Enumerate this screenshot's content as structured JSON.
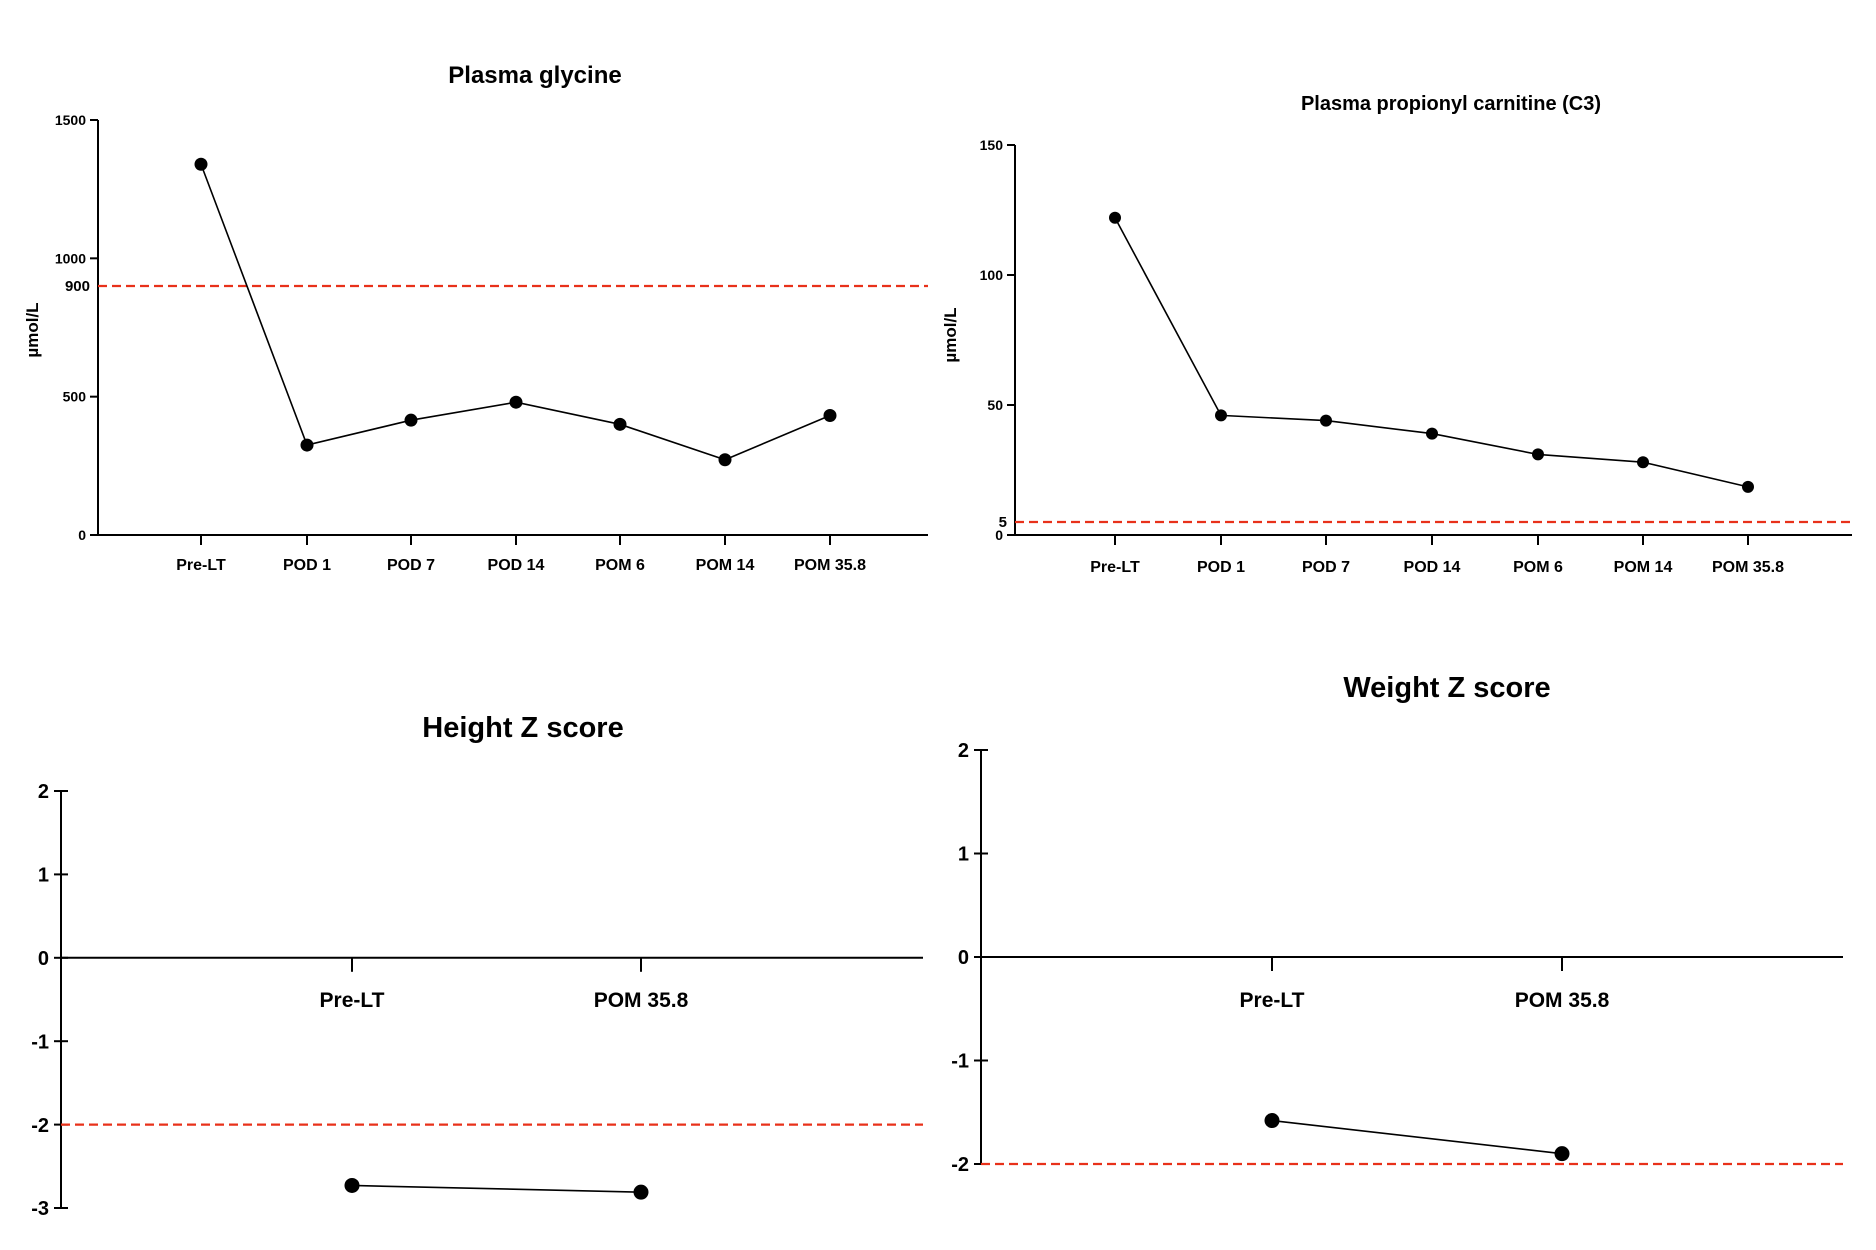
{
  "chart_data": [
    {
      "type": "line",
      "title": "Plasma glycine",
      "ylabel": "µmol/L",
      "xlabel": "",
      "categories": [
        "Pre-LT",
        "POD 1",
        "POD 7",
        "POD 14",
        "POM 6",
        "POM 14",
        "POM 35.8"
      ],
      "series": [
        {
          "values": [
            1340,
            325,
            415,
            480,
            400,
            272,
            432
          ]
        }
      ],
      "ylim": [
        0,
        1500
      ],
      "yticks": [
        0,
        500,
        1000,
        1500
      ],
      "reference_line": {
        "value": 900,
        "label": "900",
        "color": "#e8311a"
      },
      "grid": false
    },
    {
      "type": "line",
      "title": "Plasma propionyl carnitine (C3)",
      "ylabel": "µmol/L",
      "xlabel": "",
      "categories": [
        "Pre-LT",
        "POD 1",
        "POD 7",
        "POD 14",
        "POM 6",
        "POM 14",
        "POM 35.8"
      ],
      "series": [
        {
          "values": [
            122,
            46,
            44,
            39,
            31,
            28,
            18.5
          ]
        }
      ],
      "ylim": [
        0,
        150
      ],
      "yticks": [
        0,
        50,
        100,
        150
      ],
      "reference_line": {
        "value": 5,
        "label": "5",
        "color": "#e8311a"
      },
      "grid": false
    },
    {
      "type": "line",
      "title": "Height Z score",
      "ylabel": "",
      "xlabel": "",
      "categories": [
        "Pre-LT",
        "POM 35.8"
      ],
      "series": [
        {
          "values": [
            -2.73,
            -2.81
          ]
        }
      ],
      "ylim": [
        -3,
        2
      ],
      "yticks": [
        -3,
        -2,
        -1,
        0,
        1,
        2
      ],
      "reference_line": {
        "value": -2,
        "color": "#e8311a"
      },
      "grid": false
    },
    {
      "type": "line",
      "title": "Weight Z score",
      "ylabel": "",
      "xlabel": "",
      "categories": [
        "Pre-LT",
        "POM 35.8"
      ],
      "series": [
        {
          "values": [
            -1.58,
            -1.9
          ]
        }
      ],
      "ylim": [
        -2,
        2
      ],
      "yticks": [
        -2,
        -1,
        0,
        1,
        2
      ],
      "reference_line": {
        "value": -2,
        "color": "#e8311a"
      },
      "grid": false
    }
  ]
}
